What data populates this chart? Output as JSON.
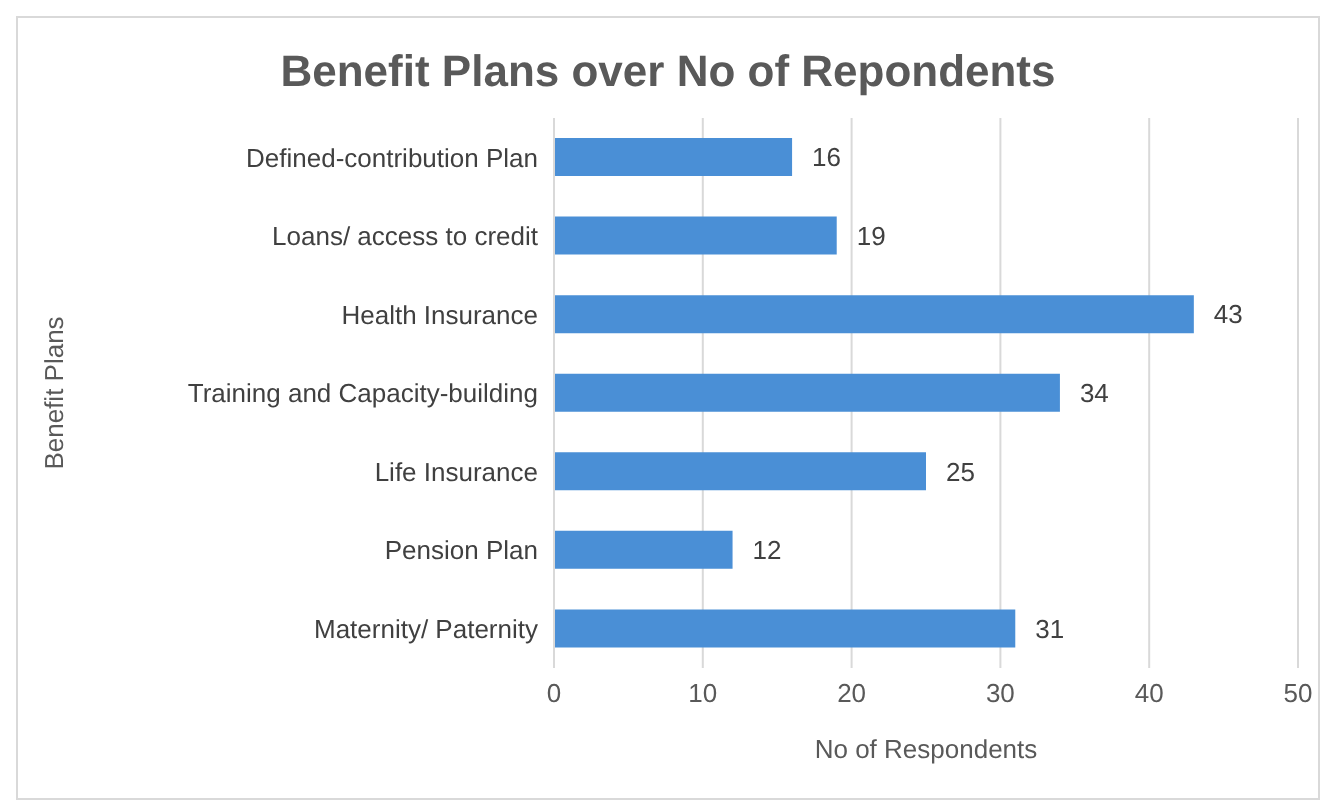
{
  "chart_data": {
    "type": "bar",
    "orientation": "horizontal",
    "title": "Benefit Plans over No of Repondents",
    "xlabel": "No of Respondents",
    "ylabel": "Benefit Plans",
    "categories": [
      "Defined-contribution Plan",
      "Loans/ access to credit",
      "Health Insurance",
      "Training and Capacity-building",
      "Life Insurance",
      "Pension Plan",
      "Maternity/ Paternity"
    ],
    "values": [
      16,
      19,
      43,
      34,
      25,
      12,
      31
    ],
    "color": "#4a8fd6",
    "xlim": [
      0,
      50
    ],
    "xticks": [
      0,
      10,
      20,
      30,
      40,
      50
    ],
    "grid": "x",
    "data_labels": true
  }
}
